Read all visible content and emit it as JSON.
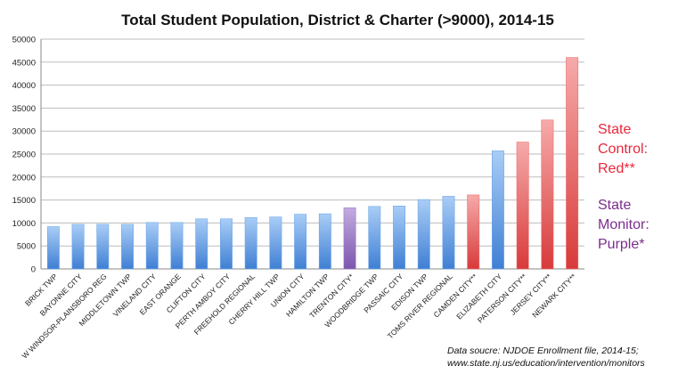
{
  "chart_data": {
    "type": "bar",
    "title": "Total Student Population, District & Charter (>9000), 2014-15",
    "xlabel": "",
    "ylabel": "",
    "ylim": [
      0,
      50000
    ],
    "yticks": [
      0,
      5000,
      10000,
      15000,
      20000,
      25000,
      30000,
      35000,
      40000,
      45000,
      50000
    ],
    "grid": true,
    "categories": [
      "BRICK TWP",
      "BAYONNE CITY",
      "W WINDSOR-PLAINSBORO REG",
      "MIDDLETOWN TWP",
      "VINELAND CITY",
      "EAST ORANGE",
      "CLIFTON CITY",
      "PERTH AMBOY CITY",
      "FREEHOLD REGIONAL",
      "CHERRY HILL TWP",
      "UNION CITY",
      "HAMILTON TWP",
      "TRENTON CITY*",
      "WOODBRIDGE TWP",
      "PASSAIC CITY",
      "EDISON TWP",
      "TOMS RIVER REGIONAL",
      "CAMDEN CITY**",
      "ELIZABETH CITY",
      "PATERSON CITY**",
      "JERSEY CITY**",
      "NEWARK CITY**"
    ],
    "values": [
      9200,
      9700,
      9700,
      9700,
      10100,
      10100,
      10900,
      10900,
      11200,
      11300,
      11900,
      12000,
      13300,
      13600,
      13700,
      15100,
      15800,
      16100,
      25700,
      27600,
      32400,
      46000
    ],
    "bar_status": [
      "none",
      "none",
      "none",
      "none",
      "none",
      "none",
      "none",
      "none",
      "none",
      "none",
      "none",
      "none",
      "monitor",
      "none",
      "none",
      "none",
      "none",
      "control",
      "none",
      "control",
      "control",
      "control"
    ],
    "colors": {
      "none": "#6fa8e8",
      "monitor": "#9a7cc4",
      "control": "#ee6b6b"
    }
  },
  "annotations": {
    "control_lines": [
      "State",
      "Control:",
      "Red**"
    ],
    "control_color": "#e8283c",
    "monitor_lines": [
      "State",
      "Monitor:",
      "Purple*"
    ],
    "monitor_color": "#7b2d8e"
  },
  "source_lines": [
    "Data soucre: NJDOE Enrollment file, 2014-15;",
    "www.state.nj.us/education/intervention/monitors"
  ]
}
